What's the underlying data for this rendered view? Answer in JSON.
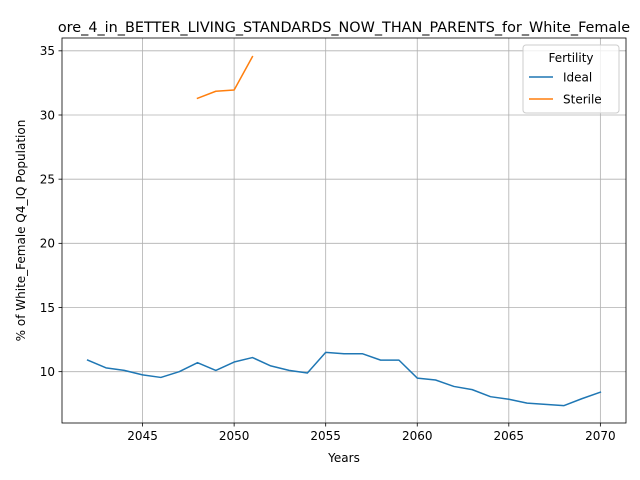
{
  "chart_data": {
    "type": "line",
    "title": "ore_4_in_BETTER_LIVING_STANDARDS_NOW_THAN_PARENTS_for_White_Female",
    "xlabel": "Years",
    "ylabel": "% of White_Female Q4_IQ Population",
    "xlim": [
      2040.6,
      2071.4
    ],
    "ylim": [
      6.0,
      36.0
    ],
    "xticks": [
      2045,
      2050,
      2055,
      2060,
      2065,
      2070
    ],
    "yticks": [
      10,
      15,
      20,
      25,
      30,
      35
    ],
    "grid": true,
    "legend": {
      "title": "Fertility",
      "placement": "top-right"
    },
    "series": [
      {
        "name": "Ideal",
        "color": "#1f77b4",
        "x": [
          2042,
          2043,
          2044,
          2045,
          2046,
          2047,
          2048,
          2049,
          2050,
          2051,
          2052,
          2053,
          2054,
          2055,
          2056,
          2057,
          2058,
          2059,
          2060,
          2061,
          2062,
          2063,
          2064,
          2065,
          2066,
          2067,
          2068,
          2069,
          2070
        ],
        "y": [
          10.9,
          10.3,
          10.1,
          9.75,
          9.55,
          10.0,
          10.7,
          10.1,
          10.75,
          11.1,
          10.45,
          10.1,
          9.9,
          11.5,
          11.4,
          11.4,
          10.9,
          10.9,
          9.5,
          9.35,
          8.85,
          8.6,
          8.05,
          7.85,
          7.55,
          7.45,
          7.35,
          7.9,
          8.4
        ]
      },
      {
        "name": "Sterile",
        "color": "#ff7f0e",
        "x": [
          2048,
          2049,
          2050,
          2051
        ],
        "y": [
          31.3,
          31.85,
          31.95,
          34.55
        ]
      }
    ]
  }
}
